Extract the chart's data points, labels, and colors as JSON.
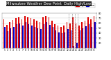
{
  "title": "Milwaukee Weather Dew Point  Daily High/Low",
  "title_fontsize": 3.8,
  "background_color": "#ffffff",
  "plot_bg": "#ffffff",
  "bar_width": 0.35,
  "legend_labels": [
    "High",
    "Low"
  ],
  "num_bars": 31,
  "high_values": [
    68,
    56,
    62,
    66,
    70,
    72,
    68,
    74,
    72,
    70,
    68,
    65,
    62,
    72,
    75,
    72,
    65,
    58,
    55,
    52,
    55,
    62,
    60,
    72,
    60,
    55,
    62,
    65,
    72,
    68,
    75
  ],
  "low_values": [
    52,
    44,
    50,
    52,
    58,
    60,
    55,
    62,
    58,
    55,
    53,
    50,
    48,
    58,
    62,
    56,
    52,
    46,
    42,
    40,
    42,
    48,
    45,
    14,
    20,
    46,
    50,
    54,
    58,
    52,
    62
  ],
  "x_labels": [
    "1",
    "2",
    "3",
    "4",
    "5",
    "6",
    "7",
    "8",
    "9",
    "10",
    "11",
    "12",
    "13",
    "14",
    "15",
    "16",
    "17",
    "18",
    "19",
    "20",
    "21",
    "22",
    "23",
    "24",
    "25",
    "26",
    "27",
    "28",
    "29",
    "30",
    "31"
  ],
  "ylim_min": 10,
  "ylim_max": 80,
  "yticks": [
    20,
    30,
    40,
    50,
    60,
    70,
    80
  ],
  "high_color": "#dd0000",
  "low_color": "#0000cc",
  "dashed_line_color": "#888888",
  "dashed_lines_at": [
    22,
    23,
    24,
    25
  ],
  "grid_color": "#cccccc",
  "title_bg": "#222222",
  "title_fg": "#ffffff"
}
